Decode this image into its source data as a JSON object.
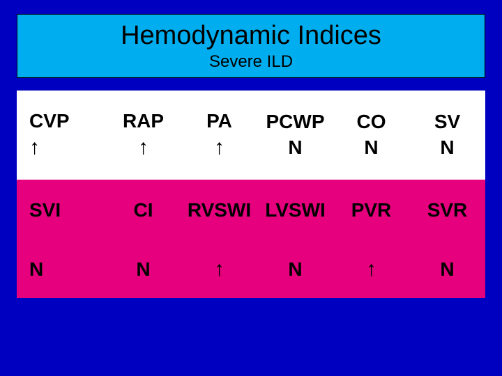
{
  "header": {
    "title": "Hemodynamic Indices",
    "subtitle": "Severe ILD"
  },
  "table": {
    "arrow_up": "↑",
    "normal": "N",
    "row1": [
      {
        "label": "CVP",
        "value": "↑"
      },
      {
        "label": "RAP",
        "value": "↑"
      },
      {
        "label": "PA",
        "value": "↑"
      },
      {
        "label": "PCWP",
        "value": "N"
      },
      {
        "label": "CO",
        "value": "N"
      },
      {
        "label": "SV",
        "value": "N"
      }
    ],
    "row2_labels": [
      "SVI",
      "CI",
      "RVSWI",
      "LVSWI",
      "PVR",
      "SVR"
    ],
    "row3_values": [
      "N",
      "N",
      "↑",
      "N",
      "↑",
      "N"
    ]
  },
  "colors": {
    "page_bg": "#0000c0",
    "header_bg": "#00aeef",
    "row1_bg": "#ffffff",
    "row23_bg": "#e6007e",
    "text": "#000000"
  }
}
